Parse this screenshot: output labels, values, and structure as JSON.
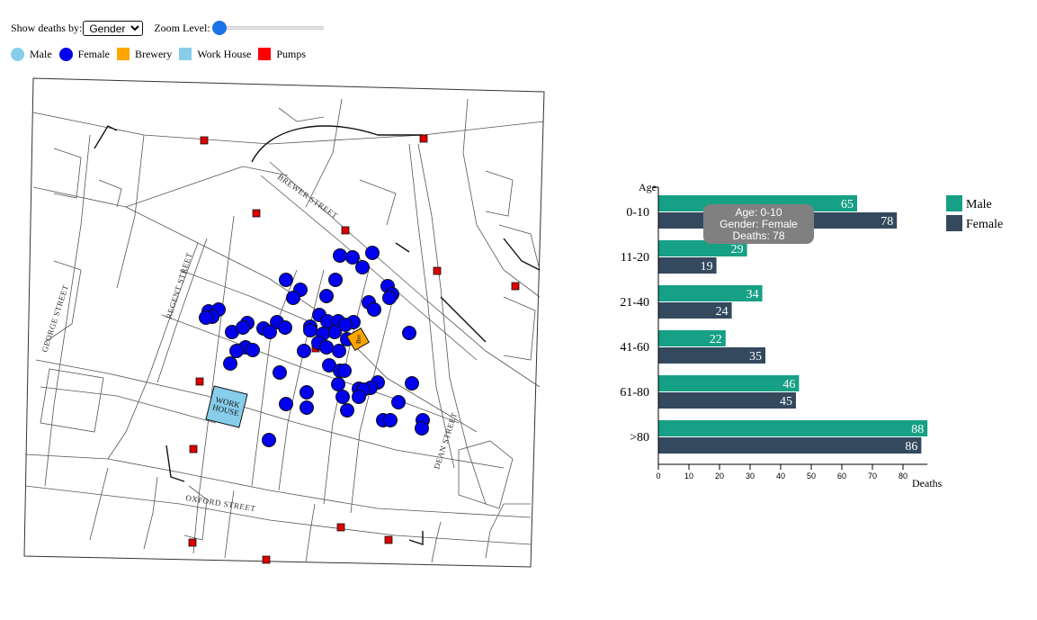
{
  "controls": {
    "show_deaths_label": "Show deaths by:",
    "show_deaths_selected": "Gender",
    "zoom_label": "Zoom Level:",
    "zoom_value": 0
  },
  "legend": {
    "items": [
      {
        "name": "male",
        "label": "Male",
        "shape": "circle",
        "color": "#87ceeb"
      },
      {
        "name": "female",
        "label": "Female",
        "shape": "circle",
        "color": "#0000ee"
      },
      {
        "name": "brewery",
        "label": "Brewery",
        "shape": "square",
        "color": "#ffa500"
      },
      {
        "name": "workhouse",
        "label": "Work House",
        "shape": "square",
        "color": "#87ceeb"
      },
      {
        "name": "pumps",
        "label": "Pumps",
        "shape": "square",
        "color": "#ff0000"
      }
    ]
  },
  "map": {
    "street_labels": [
      {
        "name": "brewer-street",
        "text": "BREWER STREET"
      },
      {
        "name": "regent-street",
        "text": "REGENT STREET"
      },
      {
        "name": "george-street",
        "text": "GEORGE STREET"
      },
      {
        "name": "oxford-street",
        "text": "OXFORD STREET"
      },
      {
        "name": "dean-street",
        "text": "DEAN STREET"
      }
    ],
    "workhouse_label": [
      "WORK",
      "HOUSE"
    ],
    "brewery_label": "Bre",
    "colors": {
      "female": "#0000ee",
      "pump": "#dd0000",
      "workhouse": "#87ceeb",
      "brewery": "#ffa500"
    }
  },
  "tooltip": {
    "line1": "Age: 0-10",
    "line2": "Gender: Female",
    "line3": "Deaths: 78"
  },
  "chart_data": {
    "type": "bar",
    "orientation": "horizontal",
    "categories": [
      "0-10",
      "11-20",
      "21-40",
      "41-60",
      "61-80",
      ">80"
    ],
    "series": [
      {
        "name": "Male",
        "color": "#16a085",
        "values": [
          65,
          29,
          34,
          22,
          46,
          88
        ]
      },
      {
        "name": "Female",
        "color": "#34495e",
        "values": [
          78,
          19,
          24,
          35,
          45,
          86
        ]
      }
    ],
    "xlabel": "Deaths",
    "ylabel": "Age",
    "xlim": [
      0,
      88
    ],
    "xticks": [
      0,
      10,
      20,
      30,
      40,
      50,
      60,
      70,
      80
    ],
    "legend_position": "top-right",
    "grid": false
  }
}
